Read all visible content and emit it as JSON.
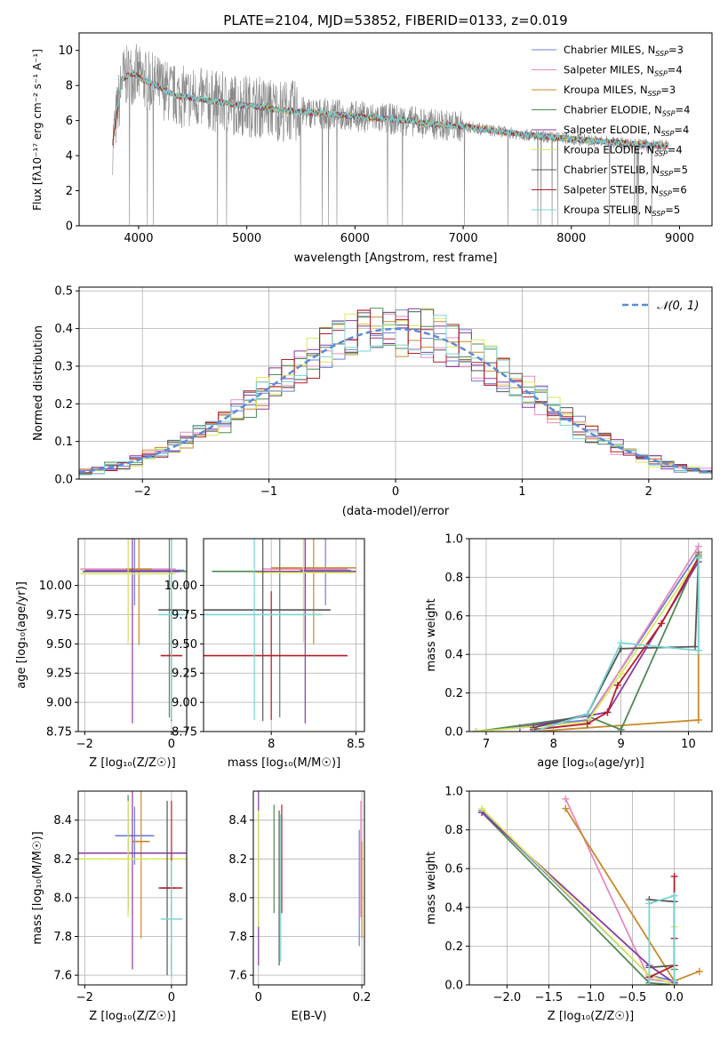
{
  "figure": {
    "title": "PLATE=2104, MJD=53852, FIBERID=0133, z=0.019"
  },
  "colors": {
    "models": [
      "#6f7fd6",
      "#e68ac0",
      "#c88a2a",
      "#4f8a55",
      "#8a3aa0",
      "#d9ea5a",
      "#555555",
      "#b51f2a",
      "#7ad4d4"
    ],
    "data_spectrum": "#888888",
    "orange_trace": "#e0702a",
    "normal_curve": "#5b8bd6",
    "grid": "#b0b0b0"
  },
  "chart_data": [
    {
      "id": "spectrum",
      "type": "line",
      "title": "PLATE=2104, MJD=53852, FIBERID=0133, z=0.019",
      "xlabel": "wavelength [Angstrom, rest frame]",
      "ylabel": "Flux [fλ10⁻¹⁷ erg cm⁻² s⁻¹ A⁻¹]",
      "xlim": [
        3450,
        9300
      ],
      "ylim": [
        0,
        11
      ],
      "xticks": [
        4000,
        5000,
        6000,
        7000,
        8000,
        9000
      ],
      "yticks": [
        0,
        2,
        4,
        6,
        8,
        10
      ],
      "grid": false,
      "legend_position": "top-right",
      "continuum": {
        "x": [
          3760,
          3850,
          3950,
          4050,
          4200,
          4350,
          4500,
          4700,
          4900,
          5100,
          5300,
          5500,
          5700,
          5900,
          6100,
          6300,
          6500,
          6700,
          6900,
          7100,
          7300,
          7500,
          7700,
          7900,
          8100,
          8300,
          8500,
          8700,
          8900
        ],
        "y": [
          4.7,
          8.4,
          8.7,
          8.3,
          7.9,
          7.4,
          7.3,
          7.1,
          6.9,
          6.8,
          6.6,
          6.5,
          6.4,
          6.3,
          6.2,
          6.1,
          6.0,
          5.8,
          5.7,
          5.6,
          5.4,
          5.25,
          5.1,
          5.0,
          4.9,
          4.8,
          4.7,
          4.6,
          4.55
        ]
      },
      "series": [
        {
          "name": "Chabrier MILES, N_SSP=3",
          "label_main": "Chabrier MILES, N",
          "label_sub": "SSP",
          "label_tail": "=3"
        },
        {
          "name": "Salpeter MILES, N_SSP=4",
          "label_main": "Salpeter MILES, N",
          "label_sub": "SSP",
          "label_tail": "=4"
        },
        {
          "name": "Kroupa MILES, N_SSP=3",
          "label_main": "Kroupa MILES, N",
          "label_sub": "SSP",
          "label_tail": "=3"
        },
        {
          "name": "Chabrier ELODIE, N_SSP=4",
          "label_main": "Chabrier ELODIE, N",
          "label_sub": "SSP",
          "label_tail": "=4"
        },
        {
          "name": "Salpeter ELODIE, N_SSP=4",
          "label_main": "Salpeter ELODIE, N",
          "label_sub": "SSP",
          "label_tail": "=4"
        },
        {
          "name": "Kroupa ELODIE, N_SSP=4",
          "label_main": "Kroupa ELODIE, N",
          "label_sub": "SSP",
          "label_tail": "=4"
        },
        {
          "name": "Chabrier STELIB, N_SSP=5",
          "label_main": "Chabrier STELIB, N",
          "label_sub": "SSP",
          "label_tail": "=5"
        },
        {
          "name": "Salpeter STELIB, N_SSP=6",
          "label_main": "Salpeter STELIB, N",
          "label_sub": "SSP",
          "label_tail": "=6"
        },
        {
          "name": "Kroupa STELIB, N_SSP=5",
          "label_main": "Kroupa STELIB, N",
          "label_sub": "SSP",
          "label_tail": "=5"
        }
      ]
    },
    {
      "id": "residuals",
      "type": "line",
      "xlabel": "(data-model)/error",
      "ylabel": "Normed distribution",
      "xlim": [
        -2.5,
        2.5
      ],
      "ylim": [
        0,
        0.51
      ],
      "xticks": [
        -2,
        -1,
        0,
        1,
        2
      ],
      "yticks": [
        0.0,
        0.1,
        0.2,
        0.3,
        0.4,
        0.5
      ],
      "grid": true,
      "legend_position": "top-right",
      "reference_curve": {
        "name": "N(0,1)",
        "label": "𝒩(0, 1)",
        "mean": 0,
        "sigma": 1
      },
      "bin_width": 0.1,
      "x": [
        -2.5,
        2.5
      ]
    },
    {
      "id": "age_vs_Z",
      "type": "scatter",
      "xlabel": "Z [log₁₀(Z/Z☉)]",
      "ylabel": "age  [log₁₀(age/yr)]",
      "xlim": [
        -2.15,
        0.35
      ],
      "ylim": [
        8.75,
        10.4
      ],
      "xticks": [
        -2,
        0
      ],
      "yticks": [
        8.75,
        9.0,
        9.25,
        9.5,
        9.75,
        10.0
      ],
      "ytick_labels": [
        "8.75",
        "9.00",
        "9.25",
        "9.50",
        "9.75",
        "10.00"
      ],
      "grid": true,
      "points": [
        {
          "x": -0.85,
          "y": 10.13,
          "xerr": 1.15,
          "yerr": 0.3
        },
        {
          "x": -1.0,
          "y": 10.14,
          "xerr": 1.1,
          "yerr": 0.6
        },
        {
          "x": -0.75,
          "y": 10.14,
          "xerr": 0.3,
          "yerr": 0.65
        },
        {
          "x": -0.05,
          "y": 10.12,
          "xerr": 2.0,
          "yerr": 1.25
        },
        {
          "x": -0.9,
          "y": 10.12,
          "xerr": 1.1,
          "yerr": 1.3
        },
        {
          "x": -1.0,
          "y": 10.1,
          "xerr": 1.1,
          "yerr": 0.6
        },
        {
          "x": 0.0,
          "y": 9.79,
          "xerr": 0.3,
          "yerr": 0.95
        },
        {
          "x": 0.0,
          "y": 9.4,
          "xerr": 0.25,
          "yerr": 0.55
        },
        {
          "x": 0.0,
          "y": 9.75,
          "xerr": 0.3,
          "yerr": 0.9
        }
      ]
    },
    {
      "id": "age_vs_mass",
      "type": "scatter",
      "xlabel": "mass [log₁₀(M/M☉)]",
      "ylabel": "",
      "xlim": [
        7.6,
        8.55
      ],
      "ylim": [
        8.75,
        10.4
      ],
      "xticks": [
        8.0,
        8.5
      ],
      "yticks": [
        8.75,
        9.0,
        9.25,
        9.5,
        9.75,
        10.0
      ],
      "ytick_labels": [
        "8.75",
        "9.00",
        "9.25",
        "9.50",
        "9.75",
        "10.00"
      ],
      "grid": true,
      "points": [
        {
          "x": 8.32,
          "y": 10.13,
          "xerr": 0.15,
          "yerr": 0.3
        },
        {
          "x": 8.2,
          "y": 10.14,
          "xerr": 0.25,
          "yerr": 0.6
        },
        {
          "x": 8.25,
          "y": 10.15,
          "xerr": 0.25,
          "yerr": 0.65
        },
        {
          "x": 8.05,
          "y": 10.12,
          "xerr": 0.4,
          "yerr": 1.25
        },
        {
          "x": 8.2,
          "y": 10.12,
          "xerr": 0.3,
          "yerr": 1.3
        },
        {
          "x": 8.19,
          "y": 10.11,
          "xerr": 0.3,
          "yerr": 0.6
        },
        {
          "x": 7.95,
          "y": 9.79,
          "xerr": 0.4,
          "yerr": 0.95
        },
        {
          "x": 8.0,
          "y": 9.4,
          "xerr": 0.45,
          "yerr": 0.55
        },
        {
          "x": 7.9,
          "y": 9.75,
          "xerr": 0.4,
          "yerr": 0.9
        }
      ]
    },
    {
      "id": "weight_vs_age",
      "type": "line",
      "xlabel": "age  [log₁₀(age/yr)]",
      "ylabel": "mass weight",
      "xlim": [
        6.75,
        10.35
      ],
      "ylim": [
        0,
        1.0
      ],
      "xticks": [
        7,
        8,
        9,
        10
      ],
      "yticks": [
        0.0,
        0.2,
        0.4,
        0.6,
        0.8,
        1.0
      ],
      "grid": true,
      "series": [
        {
          "name": "Chabrier MILES",
          "x": [
            6.85,
            8.5,
            10.15
          ],
          "y": [
            0.0,
            0.06,
            0.93
          ]
        },
        {
          "name": "Salpeter MILES",
          "x": [
            6.85,
            8.5,
            10.15
          ],
          "y": [
            0.0,
            0.05,
            0.96
          ]
        },
        {
          "name": "Kroupa MILES",
          "x": [
            7.7,
            10.15,
            10.15
          ],
          "y": [
            0.0,
            0.06,
            0.92
          ]
        },
        {
          "name": "Chabrier ELODIE",
          "x": [
            6.85,
            8.5,
            9.0,
            10.15
          ],
          "y": [
            0.0,
            0.08,
            0.01,
            0.91
          ]
        },
        {
          "name": "Salpeter ELODIE",
          "x": [
            7.5,
            8.8,
            10.15
          ],
          "y": [
            0.02,
            0.1,
            0.88
          ]
        },
        {
          "name": "Kroupa ELODIE",
          "x": [
            6.85,
            8.5,
            9.0,
            10.15
          ],
          "y": [
            0.0,
            0.05,
            0.3,
            0.9
          ]
        },
        {
          "name": "Chabrier STELIB",
          "x": [
            7.7,
            8.5,
            9.0,
            10.1,
            10.15
          ],
          "y": [
            0.02,
            0.09,
            0.43,
            0.44,
            0.9
          ]
        },
        {
          "name": "Salpeter STELIB",
          "x": [
            7.7,
            8.5,
            8.8,
            8.95,
            9.6,
            10.15
          ],
          "y": [
            0.01,
            0.04,
            0.1,
            0.24,
            0.56,
            0.9
          ]
        },
        {
          "name": "Kroupa STELIB",
          "x": [
            7.7,
            8.5,
            9.0,
            10.15,
            10.15
          ],
          "y": [
            0.0,
            0.09,
            0.46,
            0.42,
            0.9
          ]
        }
      ]
    },
    {
      "id": "mass_vs_Z",
      "type": "scatter",
      "xlabel": "Z [log₁₀(Z/Z☉)]",
      "ylabel": "mass [log₁₀(M/M☉)]",
      "xlim": [
        -2.15,
        0.35
      ],
      "ylim": [
        7.55,
        8.55
      ],
      "xticks": [
        -2,
        0
      ],
      "yticks": [
        7.6,
        7.8,
        8.0,
        8.2,
        8.4
      ],
      "ytick_labels": [
        "7.6",
        "7.8",
        "8.0",
        "8.2",
        "8.4"
      ],
      "grid": true,
      "points": [
        {
          "x": -0.85,
          "y": 8.32,
          "xerr": 0.45,
          "yerr": 0.15
        },
        {
          "x": -1.0,
          "y": 8.2,
          "xerr": 0.45,
          "yerr": 0.25
        },
        {
          "x": -0.7,
          "y": 8.29,
          "xerr": 0.2,
          "yerr": 0.5
        },
        {
          "x": -1.0,
          "y": 8.23,
          "xerr": 2.1,
          "yerr": 0.3
        },
        {
          "x": -0.9,
          "y": 8.23,
          "xerr": 2.1,
          "yerr": 0.6
        },
        {
          "x": -1.0,
          "y": 8.2,
          "xerr": 2.0,
          "yerr": 0.3
        },
        {
          "x": -0.1,
          "y": 8.05,
          "xerr": 0.2,
          "yerr": 0.45
        },
        {
          "x": 0.0,
          "y": 8.05,
          "xerr": 0.25,
          "yerr": 0.45
        },
        {
          "x": 0.0,
          "y": 7.89,
          "xerr": 0.25,
          "yerr": 0.3
        }
      ]
    },
    {
      "id": "mass_vs_ebv",
      "type": "scatter",
      "xlabel": "E(B-V)",
      "ylabel": "",
      "xlim": [
        -0.01,
        0.205
      ],
      "ylim": [
        7.55,
        8.55
      ],
      "xticks": [
        0.0,
        0.2
      ],
      "yticks": [
        7.6,
        7.8,
        8.0,
        8.2,
        8.4
      ],
      "ytick_labels": [
        "7.6",
        "7.8",
        "8.0",
        "8.2",
        "8.4"
      ],
      "grid": true,
      "points": [
        {
          "x": 0.195,
          "y": 8.05,
          "xerr": 0,
          "yerr": 0.3
        },
        {
          "x": 0.198,
          "y": 8.2,
          "xerr": 0,
          "yerr": 0.3
        },
        {
          "x": 0.2,
          "y": 8.04,
          "xerr": 0,
          "yerr": 0.25
        },
        {
          "x": 0.03,
          "y": 8.2,
          "xerr": 0,
          "yerr": 0.28
        },
        {
          "x": 0.0,
          "y": 8.1,
          "xerr": 0,
          "yerr": 0.45
        },
        {
          "x": 0.0,
          "y": 8.15,
          "xerr": 0,
          "yerr": 0.3
        },
        {
          "x": 0.04,
          "y": 8.05,
          "xerr": 0,
          "yerr": 0.4
        },
        {
          "x": 0.045,
          "y": 8.2,
          "xerr": 0,
          "yerr": 0.28
        },
        {
          "x": 0.043,
          "y": 8.05,
          "xerr": 0,
          "yerr": 0.38
        }
      ]
    },
    {
      "id": "weight_vs_Z",
      "type": "line",
      "xlabel": "Z [log₁₀(Z/Z☉)]",
      "ylabel": "mass weight",
      "xlim": [
        -2.45,
        0.45
      ],
      "ylim": [
        0,
        1.0
      ],
      "xticks": [
        -2.0,
        -1.5,
        -1.0,
        -0.5,
        0.0
      ],
      "xtick_labels": [
        "−2.0",
        "−1.5",
        "−1.0",
        "−0.5",
        "0.0"
      ],
      "yticks": [
        0.0,
        0.2,
        0.4,
        0.6,
        0.8,
        1.0
      ],
      "grid": true,
      "series": [
        {
          "name": "Chabrier MILES",
          "x": [
            -2.3,
            -0.3,
            0.0
          ],
          "y": [
            0.9,
            0.05,
            0.02
          ]
        },
        {
          "name": "Salpeter MILES",
          "x": [
            -1.3,
            -0.3,
            0.0
          ],
          "y": [
            0.96,
            0.03,
            0.01
          ]
        },
        {
          "name": "Kroupa MILES",
          "x": [
            -1.3,
            0.0,
            0.3
          ],
          "y": [
            0.91,
            0.02,
            0.07
          ]
        },
        {
          "name": "Chabrier ELODIE",
          "x": [
            -2.3,
            -0.3,
            0.0,
            0.0
          ],
          "y": [
            0.89,
            0.01,
            0.0,
            0.08
          ]
        },
        {
          "name": "Salpeter ELODIE",
          "x": [
            -2.3,
            -0.3,
            0.0
          ],
          "y": [
            0.89,
            0.1,
            0.01
          ]
        },
        {
          "name": "Kroupa ELODIE",
          "x": [
            -2.3,
            -0.3,
            0.0,
            0.0
          ],
          "y": [
            0.91,
            0.05,
            0.0,
            0.3
          ]
        },
        {
          "name": "Chabrier STELIB",
          "x": [
            -0.3,
            0.0,
            0.0,
            -0.3
          ],
          "y": [
            0.44,
            0.43,
            0.1,
            0.09
          ]
        },
        {
          "name": "Salpeter STELIB",
          "x": [
            -0.3,
            0.0,
            0.0,
            0.0
          ],
          "y": [
            0.04,
            0.1,
            0.24,
            0.56
          ]
        },
        {
          "name": "Kroupa STELIB",
          "x": [
            -0.3,
            -0.3,
            0.0,
            0.0
          ],
          "y": [
            0.0,
            0.42,
            0.46,
            0.02
          ]
        }
      ]
    }
  ]
}
